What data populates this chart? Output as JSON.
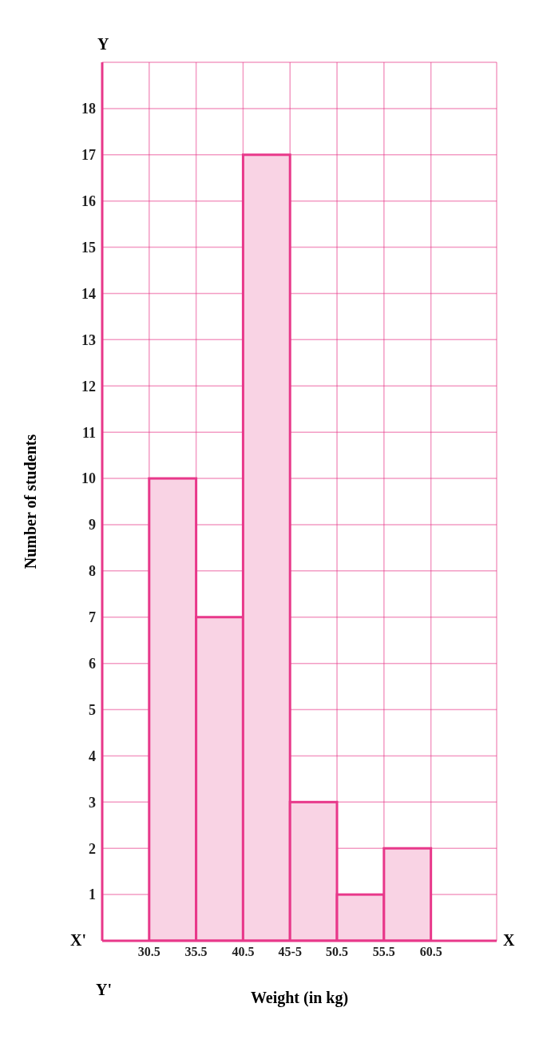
{
  "chart_data": {
    "type": "histogram",
    "xlabel": "Weight (in kg)",
    "ylabel": "Number of students",
    "bins": [
      30.5,
      35.5,
      40.5,
      45.5,
      50.5,
      55.5,
      60.5
    ],
    "values": [
      10,
      7,
      17,
      3,
      1,
      2
    ],
    "color": "#f9d3e4",
    "xlim": [
      25.5,
      67.5
    ],
    "ylim": [
      0,
      19
    ],
    "xticks": [
      30.5,
      35.5,
      40.5,
      {
        "value": 45.5,
        "label": "45-5"
      },
      50.5,
      55.5,
      60.5
    ],
    "yticks": [
      1,
      2,
      3,
      4,
      5,
      6,
      7,
      8,
      9,
      10,
      11,
      12,
      13,
      14,
      15,
      16,
      17,
      18
    ],
    "grid": true,
    "annotations": [
      "X'",
      "X",
      "Y",
      "Y'"
    ]
  }
}
